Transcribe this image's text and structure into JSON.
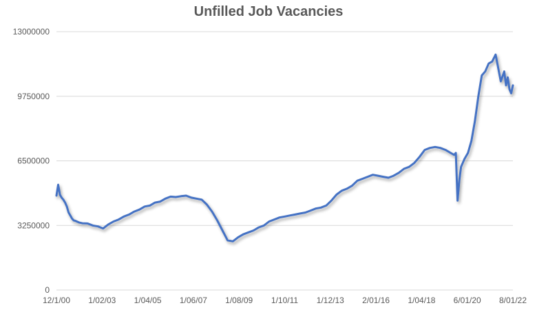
{
  "chart_data": {
    "type": "line",
    "title": "Unfilled Job Vacancies",
    "xlabel": "",
    "ylabel": "",
    "ylim": [
      0,
      13000000
    ],
    "yticks": [
      "0",
      "3250000",
      "6500000",
      "9750000",
      "13000000"
    ],
    "xticks": [
      "12/1/00",
      "1/02/03",
      "1/04/05",
      "1/06/07",
      "1/08/09",
      "1/10/11",
      "1/12/13",
      "2/01/16",
      "1/04/18",
      "6/01/20",
      "8/01/22"
    ],
    "grid": true,
    "legend": "none",
    "series_color": "#4472C4",
    "series": [
      {
        "name": "",
        "x": [
          "12/00",
          "01/01",
          "02/01",
          "03/01",
          "04/01",
          "05/01",
          "06/01",
          "07/01",
          "08/01",
          "09/01",
          "10/01",
          "11/01",
          "01/02",
          "03/02",
          "06/02",
          "09/02",
          "12/02",
          "03/03",
          "06/03",
          "09/03",
          "12/03",
          "03/04",
          "06/04",
          "09/04",
          "12/04",
          "03/05",
          "06/05",
          "09/05",
          "12/05",
          "03/06",
          "06/06",
          "09/06",
          "12/06",
          "03/07",
          "06/07",
          "09/07",
          "12/07",
          "03/08",
          "06/08",
          "09/08",
          "12/08",
          "03/09",
          "06/09",
          "09/09",
          "12/09",
          "03/10",
          "06/10",
          "09/10",
          "12/10",
          "03/11",
          "06/11",
          "09/11",
          "12/11",
          "03/12",
          "06/12",
          "09/12",
          "12/12",
          "03/13",
          "06/13",
          "09/13",
          "12/13",
          "03/14",
          "06/14",
          "09/14",
          "12/14",
          "03/15",
          "06/15",
          "09/15",
          "12/15",
          "03/16",
          "06/16",
          "09/16",
          "12/16",
          "03/17",
          "06/17",
          "09/17",
          "12/17",
          "03/18",
          "06/18",
          "09/18",
          "12/18",
          "03/19",
          "06/19",
          "09/19",
          "12/19",
          "02/20",
          "03/20",
          "04/20",
          "05/20",
          "06/20",
          "08/20",
          "10/20",
          "12/20",
          "02/21",
          "04/21",
          "06/21",
          "08/21",
          "10/21",
          "12/21",
          "02/22",
          "03/22",
          "05/22",
          "07/22",
          "08/22",
          "09/22",
          "10/22",
          "11/22",
          "12/22"
        ],
        "values": [
          4750000,
          5300000,
          4800000,
          4650000,
          4550000,
          4400000,
          4200000,
          3900000,
          3750000,
          3600000,
          3500000,
          3480000,
          3400000,
          3360000,
          3350000,
          3250000,
          3200000,
          3100000,
          3300000,
          3450000,
          3550000,
          3700000,
          3800000,
          3950000,
          4050000,
          4200000,
          4250000,
          4400000,
          4450000,
          4600000,
          4700000,
          4680000,
          4720000,
          4750000,
          4650000,
          4600000,
          4550000,
          4300000,
          3950000,
          3500000,
          3000000,
          2500000,
          2450000,
          2650000,
          2800000,
          2900000,
          3000000,
          3150000,
          3250000,
          3450000,
          3550000,
          3650000,
          3700000,
          3750000,
          3800000,
          3850000,
          3900000,
          4000000,
          4100000,
          4150000,
          4250000,
          4500000,
          4800000,
          5000000,
          5100000,
          5250000,
          5500000,
          5600000,
          5700000,
          5800000,
          5750000,
          5700000,
          5650000,
          5750000,
          5900000,
          6100000,
          6200000,
          6400000,
          6700000,
          7050000,
          7150000,
          7200000,
          7150000,
          7050000,
          6900000,
          6800000,
          6900000,
          4500000,
          5500000,
          6200000,
          6600000,
          6900000,
          7500000,
          8500000,
          9750000,
          10800000,
          11000000,
          11400000,
          11500000,
          11850000,
          11400000,
          10500000,
          11000000,
          10300000,
          10700000,
          10100000,
          9900000,
          10300000
        ]
      }
    ]
  }
}
